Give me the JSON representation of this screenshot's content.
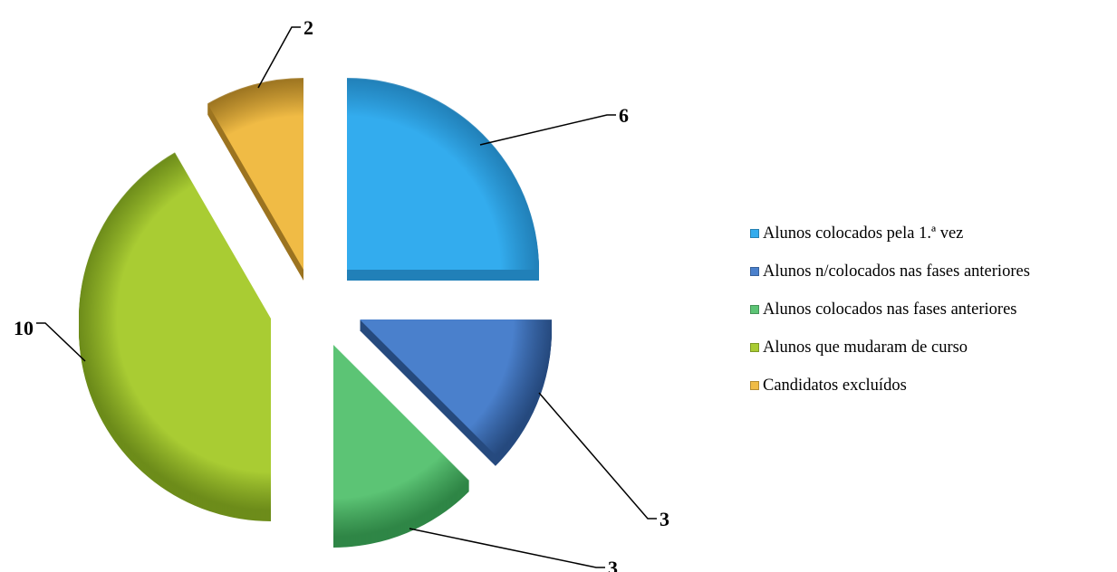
{
  "chart_data": {
    "type": "pie",
    "style": "exploded 3d",
    "legend_position": "right",
    "series": [
      {
        "name": "Alunos colocados pela 1.ª vez",
        "value": 6,
        "label": "6",
        "color": "#33acee",
        "side": "#2180b8"
      },
      {
        "name": "Alunos n/colocados nas fases anteriores",
        "value": 3,
        "label": "3",
        "color": "#4a80cc",
        "side": "#264a7f"
      },
      {
        "name": "Alunos colocados nas  fases anteriores",
        "value": 3,
        "label": "3",
        "color": "#5cc475",
        "side": "#2f8646"
      },
      {
        "name": "Alunos que mudaram de curso",
        "value": 10,
        "label": "10",
        "color": "#a9cc33",
        "side": "#6d8c1a"
      },
      {
        "name": "Candidatos excluídos",
        "value": 2,
        "label": "2",
        "color": "#f0bb45",
        "side": "#9c7420"
      }
    ]
  }
}
